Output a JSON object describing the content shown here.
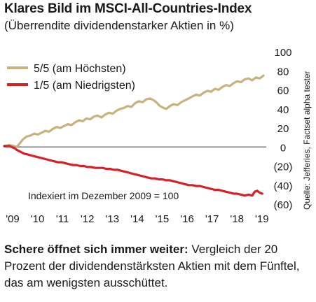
{
  "header": {
    "title": "Klares Bild im MSCI-All-Countries-Index",
    "subtitle": "(Überrendite dividendenstarker Aktien in %)"
  },
  "source": "Quelle: Jefferies, Factset alpha tester",
  "caption": {
    "bold": "Schere öffnet sich immer weiter:",
    "text": " Vergleich der 20 Prozent der dividendenstärksten Aktien mit dem Fünftel, das am wenigsten ausschüttet."
  },
  "chart_data": {
    "type": "line",
    "annotation": "Indexiert im Dezember 2009 = 100",
    "x_ticks": [
      "'09",
      "'10",
      "'11",
      "'12",
      "'13",
      "'14",
      "'15",
      "'16",
      "'17",
      "'18",
      "'19"
    ],
    "y_ticks": [
      "100",
      "80",
      "60",
      "40",
      "20",
      "0",
      "(20)",
      "(40)",
      "(60)"
    ],
    "ylim": [
      -60,
      100
    ],
    "xlim": [
      2009.5,
      2019.9
    ],
    "colors": {
      "high": "#c8b27e",
      "low": "#d62128",
      "zero": "#7a7a7a"
    },
    "series": [
      {
        "name": "5/5 (am Höchsten)",
        "color": "#c8b27e",
        "points": [
          [
            2009.5,
            1
          ],
          [
            2009.7,
            2
          ],
          [
            2009.9,
            1
          ],
          [
            2010.0,
            0
          ],
          [
            2010.1,
            3
          ],
          [
            2010.25,
            8
          ],
          [
            2010.4,
            11
          ],
          [
            2010.55,
            12
          ],
          [
            2010.7,
            14
          ],
          [
            2010.85,
            13
          ],
          [
            2011.0,
            15
          ],
          [
            2011.15,
            17
          ],
          [
            2011.3,
            16
          ],
          [
            2011.45,
            19
          ],
          [
            2011.6,
            21
          ],
          [
            2011.75,
            20
          ],
          [
            2011.9,
            22
          ],
          [
            2012.05,
            24
          ],
          [
            2012.2,
            23
          ],
          [
            2012.35,
            26
          ],
          [
            2012.5,
            28
          ],
          [
            2012.65,
            27
          ],
          [
            2012.8,
            30
          ],
          [
            2012.95,
            29
          ],
          [
            2013.1,
            32
          ],
          [
            2013.25,
            33
          ],
          [
            2013.4,
            31
          ],
          [
            2013.55,
            34
          ],
          [
            2013.7,
            36
          ],
          [
            2013.85,
            35
          ],
          [
            2014.0,
            38
          ],
          [
            2014.15,
            40
          ],
          [
            2014.3,
            41
          ],
          [
            2014.45,
            43
          ],
          [
            2014.6,
            42
          ],
          [
            2014.75,
            46
          ],
          [
            2014.9,
            48
          ],
          [
            2015.05,
            47
          ],
          [
            2015.2,
            50
          ],
          [
            2015.35,
            51
          ],
          [
            2015.5,
            49
          ],
          [
            2015.6,
            47
          ],
          [
            2015.75,
            43
          ],
          [
            2015.9,
            41
          ],
          [
            2016.0,
            40
          ],
          [
            2016.15,
            43
          ],
          [
            2016.3,
            45
          ],
          [
            2016.45,
            44
          ],
          [
            2016.6,
            47
          ],
          [
            2016.75,
            49
          ],
          [
            2016.9,
            51
          ],
          [
            2017.05,
            53
          ],
          [
            2017.2,
            55
          ],
          [
            2017.35,
            54
          ],
          [
            2017.5,
            57
          ],
          [
            2017.65,
            59
          ],
          [
            2017.8,
            58
          ],
          [
            2017.95,
            61
          ],
          [
            2018.1,
            60
          ],
          [
            2018.25,
            63
          ],
          [
            2018.4,
            65
          ],
          [
            2018.55,
            64
          ],
          [
            2018.7,
            67
          ],
          [
            2018.85,
            69
          ],
          [
            2019.0,
            68
          ],
          [
            2019.15,
            71
          ],
          [
            2019.3,
            72
          ],
          [
            2019.45,
            70
          ],
          [
            2019.6,
            73
          ],
          [
            2019.75,
            72
          ],
          [
            2019.9,
            75
          ]
        ]
      },
      {
        "name": "1/5 (am Niedrigsten)",
        "color": "#d62128",
        "points": [
          [
            2009.5,
            1
          ],
          [
            2009.7,
            1
          ],
          [
            2009.9,
            -1
          ],
          [
            2010.0,
            -3
          ],
          [
            2010.15,
            -5
          ],
          [
            2010.3,
            -7
          ],
          [
            2010.45,
            -8
          ],
          [
            2010.6,
            -9
          ],
          [
            2010.75,
            -10
          ],
          [
            2010.9,
            -11
          ],
          [
            2011.05,
            -12
          ],
          [
            2011.2,
            -13
          ],
          [
            2011.35,
            -14
          ],
          [
            2011.5,
            -15
          ],
          [
            2011.65,
            -16
          ],
          [
            2011.8,
            -16
          ],
          [
            2011.95,
            -17
          ],
          [
            2012.1,
            -18
          ],
          [
            2012.25,
            -19
          ],
          [
            2012.4,
            -19
          ],
          [
            2012.55,
            -20
          ],
          [
            2012.7,
            -20
          ],
          [
            2012.85,
            -21
          ],
          [
            2013.0,
            -21
          ],
          [
            2013.15,
            -22
          ],
          [
            2013.3,
            -22
          ],
          [
            2013.45,
            -22
          ],
          [
            2013.6,
            -23
          ],
          [
            2013.75,
            -23
          ],
          [
            2013.9,
            -24
          ],
          [
            2014.05,
            -24
          ],
          [
            2014.2,
            -25
          ],
          [
            2014.35,
            -26
          ],
          [
            2014.5,
            -27
          ],
          [
            2014.65,
            -28
          ],
          [
            2014.8,
            -29
          ],
          [
            2014.95,
            -30
          ],
          [
            2015.1,
            -31
          ],
          [
            2015.25,
            -32
          ],
          [
            2015.4,
            -33
          ],
          [
            2015.55,
            -33
          ],
          [
            2015.7,
            -34
          ],
          [
            2015.85,
            -34
          ],
          [
            2016.0,
            -35
          ],
          [
            2016.15,
            -35
          ],
          [
            2016.3,
            -36
          ],
          [
            2016.45,
            -37
          ],
          [
            2016.6,
            -38
          ],
          [
            2016.75,
            -39
          ],
          [
            2016.9,
            -40
          ],
          [
            2017.05,
            -40
          ],
          [
            2017.2,
            -41
          ],
          [
            2017.35,
            -41
          ],
          [
            2017.5,
            -42
          ],
          [
            2017.65,
            -43
          ],
          [
            2017.8,
            -44
          ],
          [
            2017.95,
            -45
          ],
          [
            2018.1,
            -45
          ],
          [
            2018.25,
            -46
          ],
          [
            2018.4,
            -47
          ],
          [
            2018.55,
            -48
          ],
          [
            2018.7,
            -49
          ],
          [
            2018.85,
            -49
          ],
          [
            2019.0,
            -50
          ],
          [
            2019.15,
            -51
          ],
          [
            2019.3,
            -50
          ],
          [
            2019.45,
            -51
          ],
          [
            2019.55,
            -47
          ],
          [
            2019.65,
            -46
          ],
          [
            2019.75,
            -48
          ],
          [
            2019.85,
            -49
          ]
        ]
      }
    ]
  }
}
